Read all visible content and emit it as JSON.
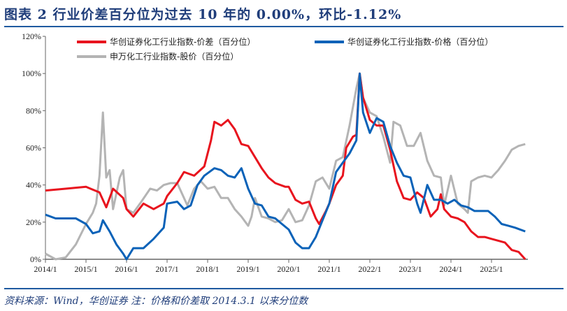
{
  "title": "图表 2   行业价差百分位为过去 10 年的 0.00%，环比-1.12%",
  "source": "资料来源：Wind，华创证券   注：价格和价差取 2014.3.1 以来分位数",
  "chart_data": {
    "type": "line",
    "xlabel": "",
    "ylabel": "",
    "ylim": [
      0,
      120
    ],
    "yticks": [
      "0%",
      "20%",
      "40%",
      "60%",
      "80%",
      "100%",
      "120%"
    ],
    "xticks": [
      "2014/1",
      "2015/1",
      "2016/1",
      "2017/1",
      "2018/1",
      "2019/1",
      "2020/1",
      "2021/1",
      "2022/1",
      "2023/1",
      "2024/1",
      "2025/1"
    ],
    "grid": false,
    "legend_position": "top",
    "series": [
      {
        "name": "华创证券化工行业指数-价差（百分位）",
        "color": "#e8141e",
        "points": [
          [
            "2014-01",
            37
          ],
          [
            "2014-07",
            38
          ],
          [
            "2015-01",
            39
          ],
          [
            "2015-05",
            36
          ],
          [
            "2015-07",
            28
          ],
          [
            "2015-09",
            38
          ],
          [
            "2015-12",
            33
          ],
          [
            "2016-01",
            27
          ],
          [
            "2016-03",
            23
          ],
          [
            "2016-06",
            30
          ],
          [
            "2016-09",
            27
          ],
          [
            "2016-12",
            30
          ],
          [
            "2017-01",
            34
          ],
          [
            "2017-04",
            41
          ],
          [
            "2017-06",
            47
          ],
          [
            "2017-09",
            45
          ],
          [
            "2017-12",
            50
          ],
          [
            "2018-02",
            64
          ],
          [
            "2018-03",
            74
          ],
          [
            "2018-05",
            72
          ],
          [
            "2018-07",
            75
          ],
          [
            "2018-09",
            70
          ],
          [
            "2018-11",
            62
          ],
          [
            "2019-01",
            61
          ],
          [
            "2019-03",
            55
          ],
          [
            "2019-05",
            49
          ],
          [
            "2019-07",
            44
          ],
          [
            "2019-09",
            41
          ],
          [
            "2019-12",
            39
          ],
          [
            "2020-01",
            39
          ],
          [
            "2020-03",
            32
          ],
          [
            "2020-05",
            30
          ],
          [
            "2020-07",
            31
          ],
          [
            "2020-09",
            22
          ],
          [
            "2020-10",
            19
          ],
          [
            "2020-12",
            26
          ],
          [
            "2021-01",
            30
          ],
          [
            "2021-03",
            40
          ],
          [
            "2021-05",
            45
          ],
          [
            "2021-06",
            60
          ],
          [
            "2021-08",
            66
          ],
          [
            "2021-09",
            67
          ],
          [
            "2021-10",
            100
          ],
          [
            "2021-11",
            87
          ],
          [
            "2022-01",
            75
          ],
          [
            "2022-03",
            72
          ],
          [
            "2022-05",
            72
          ],
          [
            "2022-07",
            59
          ],
          [
            "2022-09",
            42
          ],
          [
            "2022-11",
            33
          ],
          [
            "2023-01",
            32
          ],
          [
            "2023-03",
            36
          ],
          [
            "2023-05",
            33
          ],
          [
            "2023-07",
            23
          ],
          [
            "2023-09",
            27
          ],
          [
            "2023-10",
            35
          ],
          [
            "2023-11",
            27
          ],
          [
            "2024-01",
            23
          ],
          [
            "2024-03",
            22
          ],
          [
            "2024-05",
            20
          ],
          [
            "2024-07",
            15
          ],
          [
            "2024-09",
            12
          ],
          [
            "2024-11",
            12
          ],
          [
            "2025-01",
            11
          ],
          [
            "2025-03",
            10
          ],
          [
            "2025-05",
            9
          ],
          [
            "2025-07",
            5
          ],
          [
            "2025-09",
            4
          ],
          [
            "2025-11",
            0
          ]
        ]
      },
      {
        "name": "华创证券化工行业指数-价格（百分位）",
        "color": "#0a62b8",
        "points": [
          [
            "2014-01",
            24
          ],
          [
            "2014-04",
            22
          ],
          [
            "2014-07",
            22
          ],
          [
            "2014-10",
            22
          ],
          [
            "2015-01",
            19
          ],
          [
            "2015-03",
            14
          ],
          [
            "2015-05",
            15
          ],
          [
            "2015-06",
            21
          ],
          [
            "2015-08",
            15
          ],
          [
            "2015-10",
            8
          ],
          [
            "2015-12",
            3
          ],
          [
            "2016-01",
            0
          ],
          [
            "2016-03",
            6
          ],
          [
            "2016-06",
            6
          ],
          [
            "2016-09",
            11
          ],
          [
            "2016-12",
            17
          ],
          [
            "2017-01",
            30
          ],
          [
            "2017-04",
            31
          ],
          [
            "2017-06",
            27
          ],
          [
            "2017-08",
            29
          ],
          [
            "2017-10",
            40
          ],
          [
            "2017-12",
            45
          ],
          [
            "2018-03",
            49
          ],
          [
            "2018-05",
            48
          ],
          [
            "2018-07",
            45
          ],
          [
            "2018-09",
            44
          ],
          [
            "2018-11",
            49
          ],
          [
            "2019-01",
            38
          ],
          [
            "2019-03",
            30
          ],
          [
            "2019-05",
            29
          ],
          [
            "2019-07",
            23
          ],
          [
            "2019-09",
            22
          ],
          [
            "2019-11",
            19
          ],
          [
            "2020-01",
            16
          ],
          [
            "2020-03",
            9
          ],
          [
            "2020-05",
            6
          ],
          [
            "2020-07",
            6
          ],
          [
            "2020-09",
            12
          ],
          [
            "2020-11",
            21
          ],
          [
            "2021-01",
            30
          ],
          [
            "2021-03",
            47
          ],
          [
            "2021-05",
            52
          ],
          [
            "2021-07",
            57
          ],
          [
            "2021-09",
            64
          ],
          [
            "2021-10",
            100
          ],
          [
            "2021-11",
            79
          ],
          [
            "2022-01",
            68
          ],
          [
            "2022-03",
            76
          ],
          [
            "2022-05",
            74
          ],
          [
            "2022-07",
            61
          ],
          [
            "2022-09",
            52
          ],
          [
            "2022-11",
            45
          ],
          [
            "2023-01",
            44
          ],
          [
            "2023-03",
            30
          ],
          [
            "2023-04",
            25
          ],
          [
            "2023-06",
            40
          ],
          [
            "2023-08",
            32
          ],
          [
            "2023-10",
            32
          ],
          [
            "2023-12",
            30
          ],
          [
            "2024-02",
            32
          ],
          [
            "2024-04",
            29
          ],
          [
            "2024-06",
            28
          ],
          [
            "2024-08",
            26
          ],
          [
            "2024-10",
            26
          ],
          [
            "2024-12",
            26
          ],
          [
            "2025-02",
            23
          ],
          [
            "2025-04",
            19
          ],
          [
            "2025-06",
            18
          ],
          [
            "2025-08",
            17
          ],
          [
            "2025-11",
            15
          ]
        ]
      },
      {
        "name": "申万化工行业指数-股价（百分位）",
        "color": "#b4b4b4",
        "points": [
          [
            "2014-01",
            3
          ],
          [
            "2014-04",
            0
          ],
          [
            "2014-07",
            1
          ],
          [
            "2014-10",
            8
          ],
          [
            "2015-01",
            19
          ],
          [
            "2015-03",
            25
          ],
          [
            "2015-04",
            30
          ],
          [
            "2015-05",
            45
          ],
          [
            "2015-06",
            79
          ],
          [
            "2015-07",
            44
          ],
          [
            "2015-08",
            48
          ],
          [
            "2015-09",
            27
          ],
          [
            "2015-11",
            44
          ],
          [
            "2015-12",
            48
          ],
          [
            "2016-01",
            27
          ],
          [
            "2016-03",
            25
          ],
          [
            "2016-05",
            30
          ],
          [
            "2016-08",
            38
          ],
          [
            "2016-10",
            37
          ],
          [
            "2016-12",
            40
          ],
          [
            "2017-02",
            41
          ],
          [
            "2017-04",
            41
          ],
          [
            "2017-07",
            29
          ],
          [
            "2017-09",
            38
          ],
          [
            "2017-11",
            42
          ],
          [
            "2018-01",
            38
          ],
          [
            "2018-03",
            39
          ],
          [
            "2018-05",
            33
          ],
          [
            "2018-07",
            33
          ],
          [
            "2018-09",
            27
          ],
          [
            "2018-11",
            23
          ],
          [
            "2019-01",
            18
          ],
          [
            "2019-02",
            23
          ],
          [
            "2019-03",
            33
          ],
          [
            "2019-05",
            23
          ],
          [
            "2019-07",
            22
          ],
          [
            "2019-09",
            20
          ],
          [
            "2019-11",
            21
          ],
          [
            "2020-01",
            27
          ],
          [
            "2020-03",
            20
          ],
          [
            "2020-05",
            21
          ],
          [
            "2020-07",
            29
          ],
          [
            "2020-09",
            42
          ],
          [
            "2020-11",
            44
          ],
          [
            "2021-01",
            38
          ],
          [
            "2021-03",
            53
          ],
          [
            "2021-05",
            55
          ],
          [
            "2021-07",
            72
          ],
          [
            "2021-09",
            92
          ],
          [
            "2021-10",
            100
          ],
          [
            "2021-11",
            87
          ],
          [
            "2022-01",
            79
          ],
          [
            "2022-03",
            77
          ],
          [
            "2022-05",
            66
          ],
          [
            "2022-07",
            52
          ],
          [
            "2022-08",
            74
          ],
          [
            "2022-10",
            72
          ],
          [
            "2022-12",
            61
          ],
          [
            "2023-02",
            61
          ],
          [
            "2023-04",
            68
          ],
          [
            "2023-06",
            53
          ],
          [
            "2023-08",
            45
          ],
          [
            "2023-10",
            44
          ],
          [
            "2023-11",
            29
          ],
          [
            "2024-01",
            45
          ],
          [
            "2024-03",
            30
          ],
          [
            "2024-05",
            27
          ],
          [
            "2024-06",
            25
          ],
          [
            "2024-07",
            42
          ],
          [
            "2024-09",
            44
          ],
          [
            "2024-11",
            45
          ],
          [
            "2025-01",
            44
          ],
          [
            "2025-03",
            48
          ],
          [
            "2025-05",
            53
          ],
          [
            "2025-07",
            59
          ],
          [
            "2025-09",
            61
          ],
          [
            "2025-11",
            62
          ]
        ]
      }
    ]
  }
}
